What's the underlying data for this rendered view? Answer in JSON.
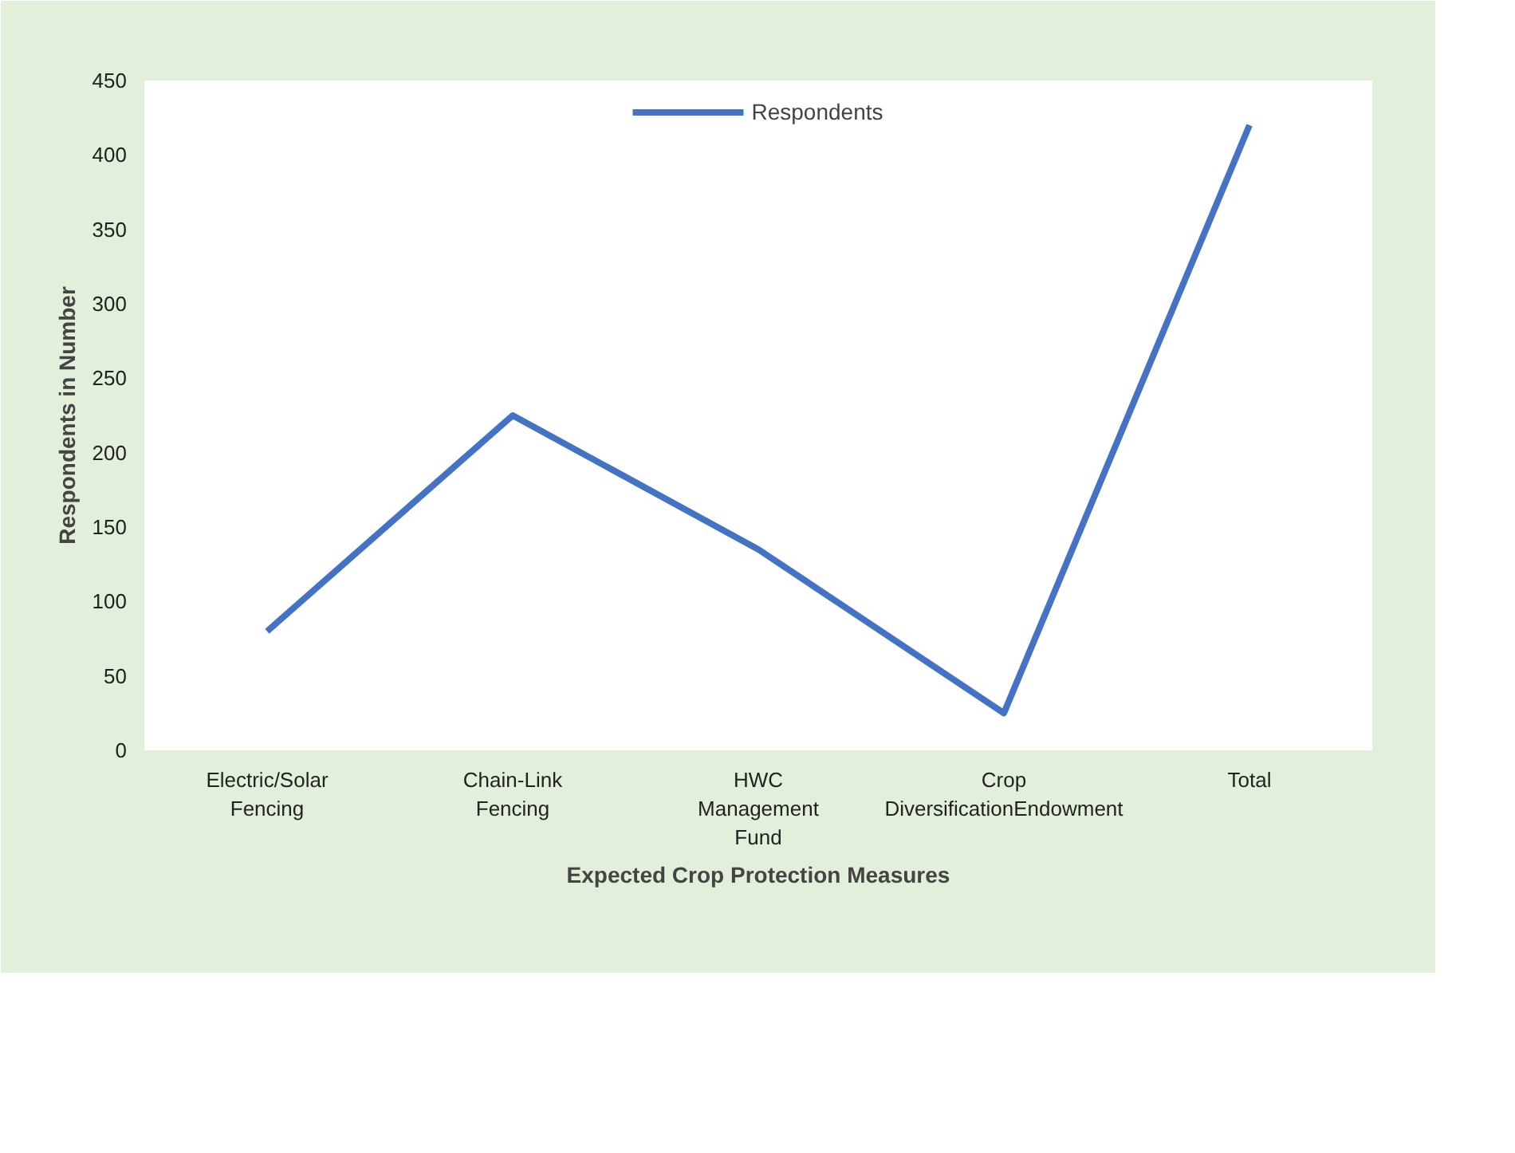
{
  "chart_data": {
    "type": "line",
    "xlabel": "Expected Crop Protection Measures",
    "ylabel": "Respondents in Number",
    "categories": [
      "Electric/Solar\nFencing",
      "Chain-Link\nFencing",
      "HWC\nManagement\nFund",
      "Crop\nDiversificationEndowment",
      "Total"
    ],
    "series": [
      {
        "name": "Respondents",
        "color": "#4472c4",
        "values": [
          80,
          225,
          135,
          25,
          420
        ]
      }
    ],
    "ylim": [
      0,
      450
    ],
    "yticks": [
      0,
      50,
      100,
      150,
      200,
      250,
      300,
      350,
      400,
      450
    ],
    "grid": false,
    "legend": "top",
    "marker": "none",
    "line_style": "solid"
  }
}
